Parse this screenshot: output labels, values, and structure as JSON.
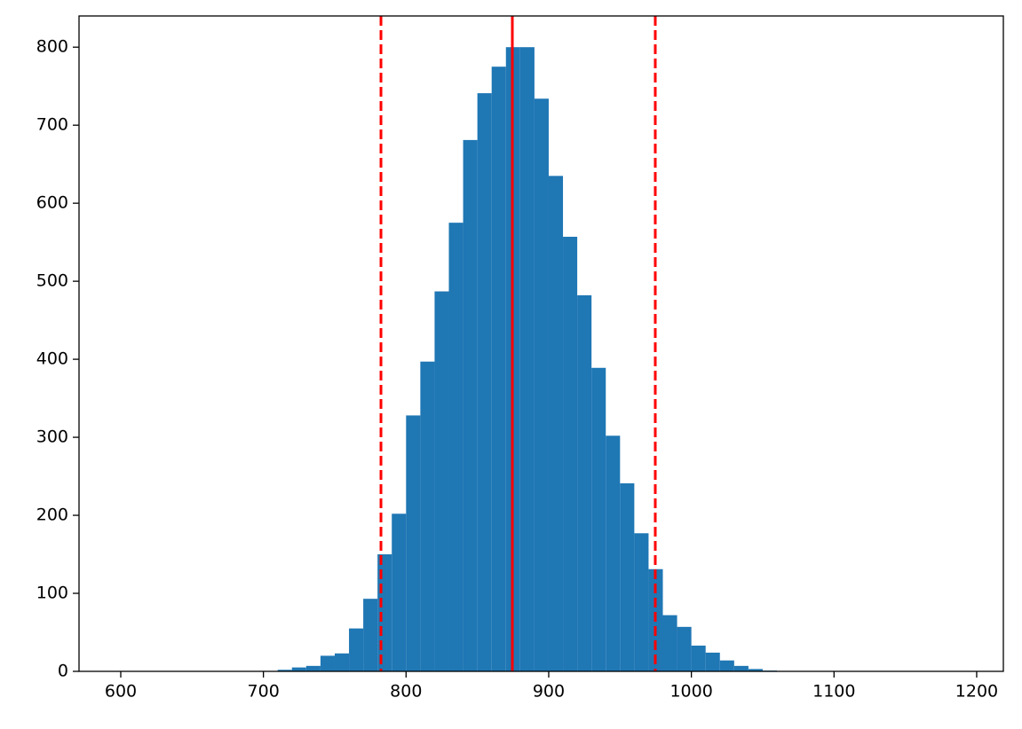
{
  "chart_data": {
    "type": "histogram",
    "bins": [
      600,
      610,
      620,
      630,
      640,
      650,
      660,
      670,
      680,
      690,
      700,
      710,
      720,
      730,
      740,
      750,
      760,
      770,
      780,
      790,
      800,
      810,
      820,
      830,
      840,
      850,
      860,
      870,
      880,
      890,
      900,
      910,
      920,
      930,
      940,
      950,
      960,
      970,
      980,
      990,
      1000,
      1010,
      1020,
      1030,
      1040,
      1050,
      1060,
      1070,
      1080,
      1090,
      1100,
      1110,
      1120,
      1130,
      1140,
      1150,
      1160,
      1170,
      1180,
      1190
    ],
    "values": [
      0,
      0,
      0,
      0,
      0,
      0,
      0,
      0,
      0,
      0,
      0,
      2,
      5,
      7,
      20,
      23,
      55,
      93,
      150,
      202,
      328,
      397,
      487,
      575,
      681,
      741,
      775,
      800,
      800,
      734,
      635,
      557,
      482,
      389,
      302,
      241,
      177,
      131,
      72,
      57,
      33,
      24,
      14,
      7,
      3,
      1,
      0,
      0,
      0,
      0,
      0,
      0,
      0,
      0,
      0,
      0,
      0,
      0,
      0
    ],
    "color": "#1f77b4",
    "vlines": [
      {
        "x": 874.5,
        "color": "#ff0000",
        "style": "solid"
      },
      {
        "x": 782.4,
        "color": "#ff0000",
        "style": "dashed"
      },
      {
        "x": 974.7,
        "color": "#ff0000",
        "style": "dashed"
      }
    ],
    "xlim": [
      570.75,
      1218.7
    ],
    "ylim": [
      0,
      840
    ],
    "xticks": [
      600,
      700,
      800,
      900,
      1000,
      1100,
      1200
    ],
    "yticks": [
      0,
      100,
      200,
      300,
      400,
      500,
      600,
      700,
      800
    ]
  }
}
